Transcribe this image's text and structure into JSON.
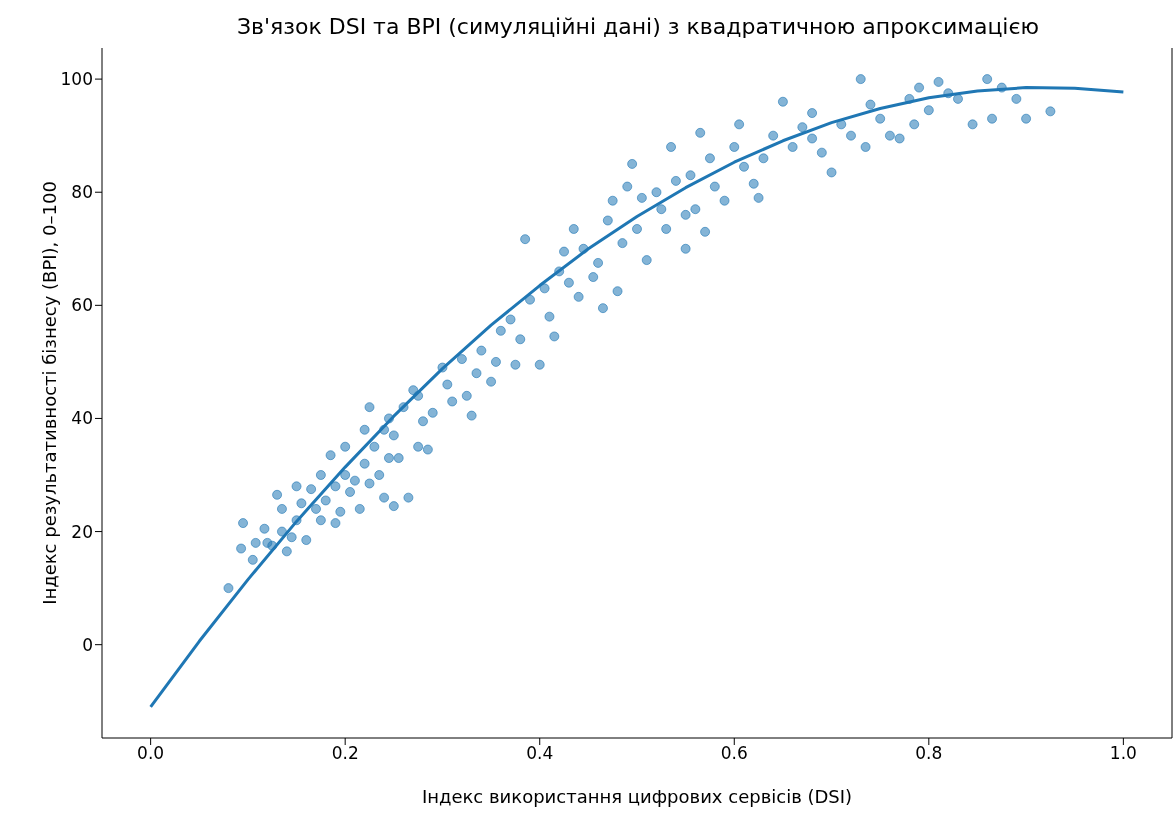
{
  "chart_data": {
    "type": "scatter",
    "title": "Зв'язок DSI та BPI (симуляційні дані) з квадратичною апроксимацією",
    "xlabel": "Індекс використання цифрових сервісів (DSI)",
    "ylabel": "Індекс результативності бізнесу (BPI), 0–100",
    "xlim": [
      -0.05,
      1.05
    ],
    "ylim": [
      -16.5,
      105.5
    ],
    "xticks": [
      {
        "value": 0,
        "label": "0.0"
      },
      {
        "value": 0.2,
        "label": "0.2"
      },
      {
        "value": 0.4,
        "label": "0.4"
      },
      {
        "value": 0.6,
        "label": "0.6"
      },
      {
        "value": 0.8,
        "label": "0.8"
      },
      {
        "value": 1,
        "label": "1.0"
      }
    ],
    "yticks": [
      0,
      20,
      40,
      60,
      80,
      100
    ],
    "grid": false,
    "legend": false,
    "marker": "circle",
    "series": [
      {
        "type": "scatter",
        "color": "#1f77b4",
        "x": [
          0.08,
          0.093,
          0.095,
          0.105,
          0.108,
          0.117,
          0.12,
          0.125,
          0.13,
          0.135,
          0.135,
          0.14,
          0.145,
          0.15,
          0.155,
          0.16,
          0.165,
          0.17,
          0.175,
          0.175,
          0.18,
          0.185,
          0.19,
          0.19,
          0.195,
          0.2,
          0.2,
          0.205,
          0.21,
          0.215,
          0.22,
          0.22,
          0.225,
          0.225,
          0.23,
          0.235,
          0.24,
          0.245,
          0.25,
          0.25,
          0.255,
          0.26,
          0.265,
          0.27,
          0.275,
          0.28,
          0.285,
          0.29,
          0.3,
          0.305,
          0.31,
          0.32,
          0.325,
          0.33,
          0.335,
          0.34,
          0.35,
          0.355,
          0.36,
          0.37,
          0.375,
          0.38,
          0.385,
          0.39,
          0.4,
          0.405,
          0.41,
          0.415,
          0.42,
          0.425,
          0.43,
          0.435,
          0.44,
          0.445,
          0.455,
          0.46,
          0.465,
          0.47,
          0.475,
          0.48,
          0.485,
          0.49,
          0.495,
          0.5,
          0.505,
          0.51,
          0.52,
          0.525,
          0.53,
          0.535,
          0.54,
          0.55,
          0.555,
          0.56,
          0.565,
          0.57,
          0.575,
          0.58,
          0.59,
          0.6,
          0.605,
          0.61,
          0.62,
          0.625,
          0.63,
          0.64,
          0.65,
          0.66,
          0.67,
          0.68,
          0.69,
          0.7,
          0.71,
          0.72,
          0.73,
          0.735,
          0.74,
          0.75,
          0.76,
          0.77,
          0.78,
          0.785,
          0.79,
          0.8,
          0.81,
          0.82,
          0.83,
          0.845,
          0.86,
          0.865,
          0.875,
          0.89,
          0.9,
          0.925,
          0.275,
          0.24,
          0.15,
          0.245,
          0.55,
          0.68
        ],
        "values": [
          10,
          17,
          21.5,
          15,
          18,
          20.5,
          18,
          17.5,
          26.5,
          24,
          20,
          16.5,
          19,
          22,
          25,
          18.5,
          27.5,
          24,
          30,
          22,
          25.5,
          33.5,
          28,
          21.5,
          23.5,
          30,
          35,
          27,
          29,
          24,
          32,
          38,
          42,
          28.5,
          35,
          30,
          26,
          40,
          37,
          24.5,
          33,
          42,
          26,
          45,
          35,
          39.5,
          34.5,
          41,
          49,
          46,
          43,
          50.5,
          44,
          40.5,
          48,
          52,
          46.5,
          50,
          55.5,
          57.5,
          49.5,
          54,
          71.7,
          61,
          49.5,
          63,
          58,
          54.5,
          66,
          69.5,
          64,
          73.5,
          61.5,
          70,
          65,
          67.5,
          59.5,
          75,
          78.5,
          62.5,
          71,
          81,
          85,
          73.5,
          79,
          68,
          80,
          77,
          73.5,
          88,
          82,
          70,
          83,
          77,
          90.5,
          73,
          86,
          81,
          78.5,
          88,
          92,
          84.5,
          81.5,
          79,
          86,
          90,
          96,
          88,
          91.5,
          94,
          87,
          83.5,
          92,
          90,
          100,
          88,
          95.5,
          93,
          90,
          89.5,
          96.5,
          92,
          98.5,
          94.5,
          99.5,
          97.5,
          96.5,
          92,
          100,
          93,
          98.5,
          96.5,
          93,
          94.3,
          44,
          38,
          28,
          33,
          76,
          89.5
        ]
      },
      {
        "type": "line",
        "color": "#1f77b4",
        "line_style": "solid",
        "marker": "none",
        "x": [
          0,
          0.05,
          0.1,
          0.15,
          0.2,
          0.25,
          0.3,
          0.35,
          0.4,
          0.45,
          0.5,
          0.55,
          0.6,
          0.65,
          0.7,
          0.75,
          0.8,
          0.85,
          0.9,
          0.95,
          1
        ],
        "values": [
          -11,
          0.6,
          11.5,
          21.8,
          31.4,
          40.4,
          48.8,
          56.5,
          63.5,
          70,
          75.7,
          80.8,
          85.3,
          89.1,
          92.3,
          94.8,
          96.7,
          97.9,
          98.5,
          98.4,
          97.7
        ]
      }
    ]
  }
}
